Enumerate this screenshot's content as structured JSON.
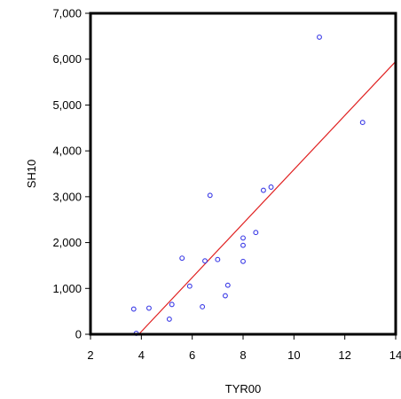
{
  "chart_data": {
    "type": "scatter",
    "title": "",
    "xlabel": "TYR00",
    "ylabel": "SH10",
    "xlim": [
      2,
      14
    ],
    "ylim": [
      0,
      7000
    ],
    "x_ticks": [
      2,
      4,
      6,
      8,
      10,
      12,
      14
    ],
    "x_tick_labels": [
      "2",
      "4",
      "6",
      "8",
      "10",
      "12",
      "14"
    ],
    "y_ticks": [
      0,
      1000,
      2000,
      3000,
      4000,
      5000,
      6000,
      7000
    ],
    "y_tick_labels": [
      "0",
      "1,000",
      "2,000",
      "3,000",
      "4,000",
      "5,000",
      "6,000",
      "7,000"
    ],
    "grid": false,
    "series": [
      {
        "marker": "circle",
        "color": "#3a3ae6",
        "x": [
          3.7,
          3.8,
          4.3,
          5.1,
          5.2,
          5.6,
          5.9,
          6.4,
          6.5,
          6.7,
          7.0,
          7.3,
          7.4,
          8.0,
          8.0,
          8.0,
          8.5,
          8.8,
          9.1,
          11.0,
          12.7
        ],
        "y": [
          550,
          20,
          570,
          330,
          650,
          1660,
          1050,
          600,
          1600,
          3030,
          1630,
          840,
          1070,
          1590,
          1940,
          2100,
          2220,
          3140,
          3210,
          6480,
          4620
        ]
      }
    ],
    "fit_line": {
      "type": "linear",
      "color": "#e02020",
      "x": [
        3.9,
        14
      ],
      "y": [
        0,
        5950
      ]
    }
  }
}
